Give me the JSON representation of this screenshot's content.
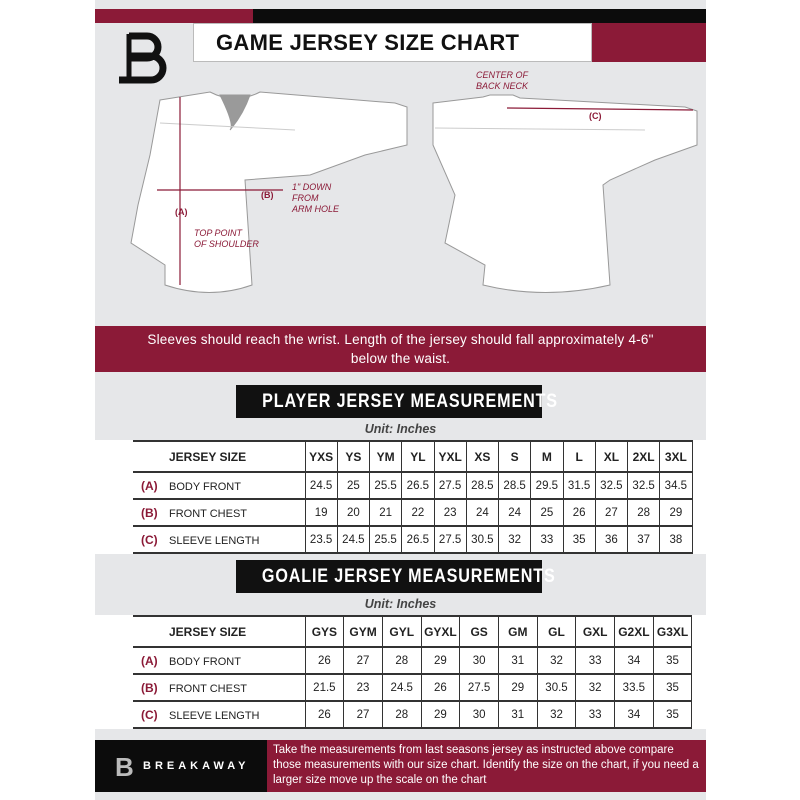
{
  "header": {
    "title": "GAME JERSEY SIZE CHART",
    "logo_text": "B"
  },
  "diagram": {
    "front": {
      "label_a": "(A)",
      "note_a": "TOP POINT\nOF SHOULDER",
      "label_b": "(B)",
      "note_b": "1\" DOWN\nFROM\nARM HOLE"
    },
    "back": {
      "note_c": "CENTER OF\nBACK NECK",
      "label_c": "(C)"
    }
  },
  "banner": {
    "text": "Sleeves should reach the wrist. Length of the jersey should fall approximately 4-6\" below the waist."
  },
  "player": {
    "title": "PLAYER JERSEY MEASUREMENTS",
    "unit": "Unit: Inches",
    "size_header": "JERSEY SIZE",
    "sizes": [
      "YXS",
      "YS",
      "YM",
      "YL",
      "YXL",
      "XS",
      "S",
      "M",
      "L",
      "XL",
      "2XL",
      "3XL"
    ],
    "rows": [
      {
        "letter": "(A)",
        "label": "BODY FRONT",
        "values": [
          "24.5",
          "25",
          "25.5",
          "26.5",
          "27.5",
          "28.5",
          "28.5",
          "29.5",
          "31.5",
          "32.5",
          "32.5",
          "34.5"
        ]
      },
      {
        "letter": "(B)",
        "label": "FRONT CHEST",
        "values": [
          "19",
          "20",
          "21",
          "22",
          "23",
          "24",
          "24",
          "25",
          "26",
          "27",
          "28",
          "29"
        ]
      },
      {
        "letter": "(C)",
        "label": "SLEEVE LENGTH",
        "values": [
          "23.5",
          "24.5",
          "25.5",
          "26.5",
          "27.5",
          "30.5",
          "32",
          "33",
          "35",
          "36",
          "37",
          "38"
        ]
      }
    ]
  },
  "goalie": {
    "title": "GOALIE JERSEY MEASUREMENTS",
    "unit": "Unit: Inches",
    "size_header": "JERSEY SIZE",
    "sizes": [
      "GYS",
      "GYM",
      "GYL",
      "GYXL",
      "GS",
      "GM",
      "GL",
      "GXL",
      "G2XL",
      "G3XL"
    ],
    "rows": [
      {
        "letter": "(A)",
        "label": "BODY FRONT",
        "values": [
          "26",
          "27",
          "28",
          "29",
          "30",
          "31",
          "32",
          "33",
          "34",
          "35"
        ]
      },
      {
        "letter": "(B)",
        "label": "FRONT CHEST",
        "values": [
          "21.5",
          "23",
          "24.5",
          "26",
          "27.5",
          "29",
          "30.5",
          "32",
          "33.5",
          "35"
        ]
      },
      {
        "letter": "(C)",
        "label": "SLEEVE LENGTH",
        "values": [
          "26",
          "27",
          "28",
          "29",
          "30",
          "31",
          "32",
          "33",
          "34",
          "35"
        ]
      }
    ]
  },
  "footer": {
    "brand": "BREAKAWAY",
    "text": "Take the measurements from last seasons jersey as instructed above compare those measurements  with our size chart. Identify the size on the chart, if you need a larger size move up the scale on the chart"
  },
  "colors": {
    "accent": "#8b1a37",
    "background": "#e6e7e9",
    "dark": "#111111"
  }
}
